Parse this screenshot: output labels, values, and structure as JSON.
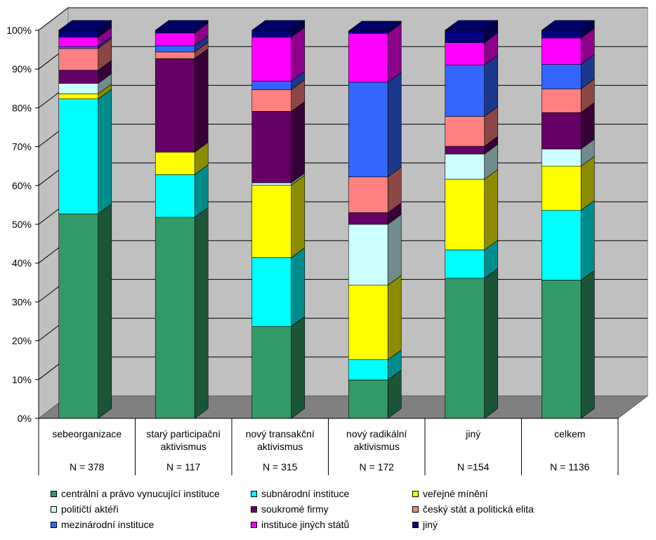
{
  "chart_data": {
    "type": "bar",
    "stacked": true,
    "percent": true,
    "categories": [
      {
        "label": [
          "sebeorganizace"
        ],
        "n": "N = 378"
      },
      {
        "label": [
          "starý participační",
          "aktivismus"
        ],
        "n": "N = 117"
      },
      {
        "label": [
          "nový transakční",
          "aktivismus"
        ],
        "n": "N = 315"
      },
      {
        "label": [
          "nový radikální",
          "aktivismus"
        ],
        "n": "N = 172"
      },
      {
        "label": [
          "jiný"
        ],
        "n": "N =154"
      },
      {
        "label": [
          "celkem"
        ],
        "n": "N = 1136"
      }
    ],
    "series": [
      {
        "name": "centrální a právo vynucující instituce",
        "color": "#339966",
        "values": [
          52.7,
          51.8,
          23.7,
          9.9,
          36.1,
          35.6
        ]
      },
      {
        "name": "subnárodní instituce",
        "color": "#00FFFF",
        "values": [
          29.6,
          11.0,
          17.7,
          5.2,
          7.3,
          18.0
        ]
      },
      {
        "name": "veřejné mínění",
        "color": "#FFFF00",
        "values": [
          1.3,
          5.8,
          18.7,
          19.2,
          18.2,
          11.4
        ]
      },
      {
        "name": "političtí aktéři",
        "color": "#CCFFFF",
        "values": [
          2.7,
          0.0,
          0.6,
          15.7,
          6.5,
          4.4
        ]
      },
      {
        "name": "soukromé firmy",
        "color": "#660066",
        "values": [
          3.4,
          24.1,
          18.4,
          3.0,
          2.0,
          9.4
        ]
      },
      {
        "name": "český stát a politická elita",
        "color": "#FF8080",
        "values": [
          5.6,
          1.7,
          5.6,
          9.2,
          7.7,
          6.1
        ]
      },
      {
        "name": "mezinárodní instituce",
        "color": "#3366FF",
        "values": [
          0.5,
          1.6,
          2.2,
          24.4,
          13.2,
          6.3
        ]
      },
      {
        "name": "instituce jiných států",
        "color": "#FF00FF",
        "values": [
          2.4,
          3.3,
          11.3,
          12.6,
          5.8,
          6.8
        ]
      },
      {
        "name": "jiný",
        "color": "#000080",
        "values": [
          1.8,
          0.7,
          1.8,
          0.6,
          3.2,
          2.0
        ]
      }
    ],
    "y_ticks": [
      "0%",
      "10%",
      "20%",
      "30%",
      "40%",
      "50%",
      "60%",
      "70%",
      "80%",
      "90%",
      "100%"
    ],
    "ylim": [
      0,
      100
    ],
    "grid": true,
    "legend_position": "bottom",
    "title": "",
    "xlabel": "",
    "ylabel": ""
  }
}
